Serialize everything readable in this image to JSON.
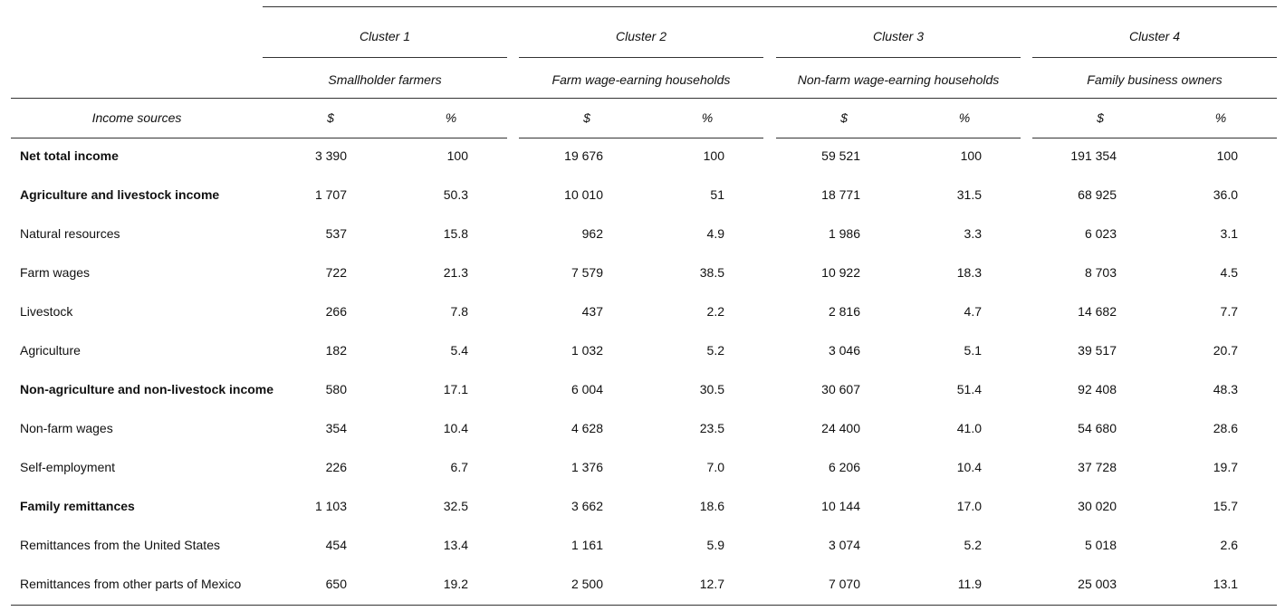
{
  "table": {
    "label_header": "Income sources",
    "clusters": [
      {
        "name": "Cluster 1",
        "group": "Smallholder farmers",
        "columns": [
          "$",
          "%"
        ]
      },
      {
        "name": "Cluster 2",
        "group": "Farm wage-earning households",
        "columns": [
          "$",
          "%"
        ]
      },
      {
        "name": "Cluster 3",
        "group": "Non-farm wage-earning households",
        "columns": [
          "$",
          "%"
        ]
      },
      {
        "name": "Cluster 4",
        "group": "Family business owners",
        "columns": [
          "$",
          "%"
        ]
      }
    ],
    "rows": [
      {
        "label": "Net total income",
        "bold": true,
        "cells": [
          "3 390",
          "100",
          "19 676",
          "100",
          "59 521",
          "100",
          "191 354",
          "100"
        ]
      },
      {
        "label": "Agriculture and livestock income",
        "bold": true,
        "cells": [
          "1 707",
          "50.3",
          "10 010",
          "51",
          "18 771",
          "31.5",
          "68 925",
          "36.0"
        ]
      },
      {
        "label": "Natural resources",
        "bold": false,
        "cells": [
          "537",
          "15.8",
          "962",
          "4.9",
          "1 986",
          "3.3",
          "6 023",
          "3.1"
        ]
      },
      {
        "label": "Farm wages",
        "bold": false,
        "cells": [
          "722",
          "21.3",
          "7 579",
          "38.5",
          "10 922",
          "18.3",
          "8 703",
          "4.5"
        ]
      },
      {
        "label": "Livestock",
        "bold": false,
        "cells": [
          "266",
          "7.8",
          "437",
          "2.2",
          "2 816",
          "4.7",
          "14 682",
          "7.7"
        ]
      },
      {
        "label": "Agriculture",
        "bold": false,
        "cells": [
          "182",
          "5.4",
          "1 032",
          "5.2",
          "3 046",
          "5.1",
          "39 517",
          "20.7"
        ]
      },
      {
        "label": "Non-agriculture and non-livestock income",
        "bold": true,
        "cells": [
          "580",
          "17.1",
          "6 004",
          "30.5",
          "30 607",
          "51.4",
          "92 408",
          "48.3"
        ]
      },
      {
        "label": "Non-farm wages",
        "bold": false,
        "cells": [
          "354",
          "10.4",
          "4 628",
          "23.5",
          "24 400",
          "41.0",
          "54 680",
          "28.6"
        ]
      },
      {
        "label": "Self-employment",
        "bold": false,
        "cells": [
          "226",
          "6.7",
          "1 376",
          "7.0",
          "6 206",
          "10.4",
          "37 728",
          "19.7"
        ]
      },
      {
        "label": "Family remittances",
        "bold": true,
        "cells": [
          "1 103",
          "32.5",
          "3 662",
          "18.6",
          "10 144",
          "17.0",
          "30 020",
          "15.7"
        ]
      },
      {
        "label": "Remittances from the United States",
        "bold": false,
        "cells": [
          "454",
          "13.4",
          "1 161",
          "5.9",
          "3 074",
          "5.2",
          "5 018",
          "2.6"
        ]
      },
      {
        "label": "Remittances from other parts of Mexico",
        "bold": false,
        "cells": [
          "650",
          "19.2",
          "2 500",
          "12.7",
          "7 070",
          "11.9",
          "25 003",
          "13.1"
        ]
      }
    ]
  }
}
